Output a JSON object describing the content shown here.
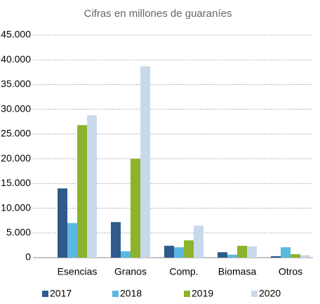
{
  "chart_data": {
    "type": "bar",
    "title": "Cifras en millones de guaraníes",
    "categories": [
      "Esencias",
      "Granos",
      "Comp.",
      "Biomasa",
      "Otros"
    ],
    "series": [
      {
        "name": "2017",
        "color": "#2e5a8c",
        "values": [
          14000,
          7200,
          2400,
          1100,
          300
        ]
      },
      {
        "name": "2018",
        "color": "#5bb8e0",
        "values": [
          7000,
          1300,
          2100,
          600,
          2100
        ]
      },
      {
        "name": "2019",
        "color": "#8db32b",
        "values": [
          26800,
          20000,
          3500,
          2400,
          700
        ]
      },
      {
        "name": "2020",
        "color": "#c9d9ec",
        "values": [
          28800,
          38700,
          6500,
          2300,
          500
        ]
      }
    ],
    "ylim": [
      0,
      45000
    ],
    "yticks": [
      0,
      {
        "value": 5000,
        "label": "5.000"
      },
      {
        "value": 10000,
        "label": "10.000"
      },
      {
        "value": 15000,
        "label": "15.000"
      },
      {
        "value": 20000,
        "label": "20.000"
      },
      {
        "value": 25000,
        "label": "25.000"
      },
      {
        "value": 30000,
        "label": "30.000"
      },
      {
        "value": 35000,
        "label": "35.000"
      },
      {
        "value": 40000,
        "label": "40.000"
      },
      {
        "value": 45000,
        "label": "45.000"
      }
    ],
    "grid": true,
    "legend": "bottom"
  }
}
